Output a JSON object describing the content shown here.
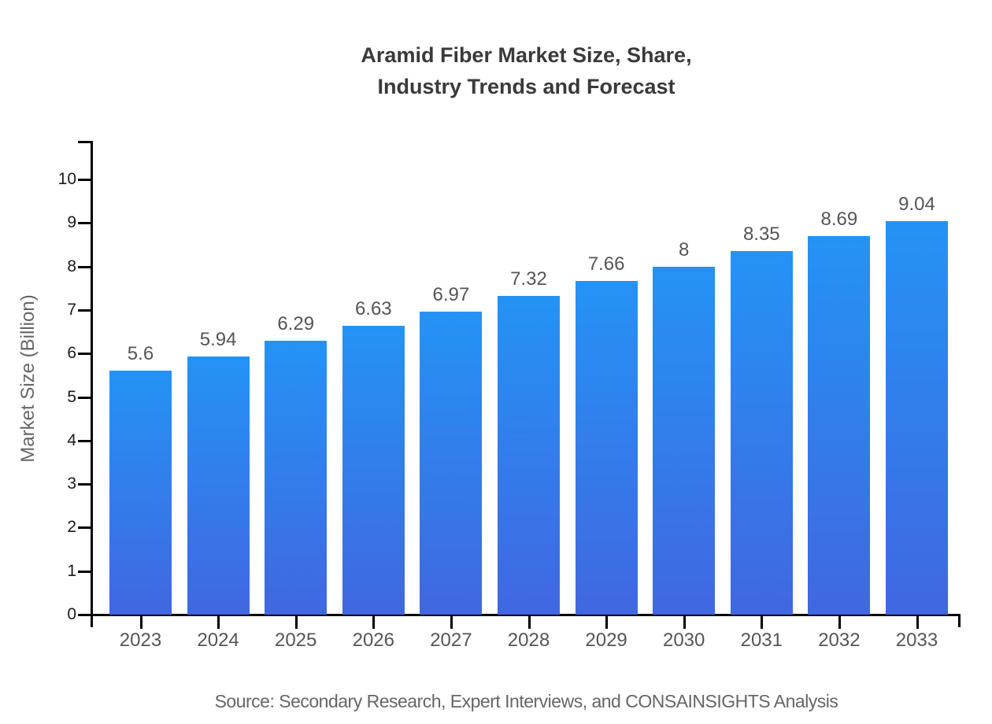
{
  "title": {
    "line1": "Aramid Fiber Market Size, Share,",
    "line2": "Industry Trends and Forecast"
  },
  "source": "Source: Secondary Research, Expert Interviews, and CONSAINSIGHTS Analysis",
  "chart_data": {
    "type": "bar",
    "title": "Aramid Fiber Market Size, Share, Industry Trends and Forecast",
    "categories": [
      "2023",
      "2024",
      "2025",
      "2026",
      "2027",
      "2028",
      "2029",
      "2030",
      "2031",
      "2032",
      "2033"
    ],
    "values": [
      5.6,
      5.94,
      6.29,
      6.63,
      6.97,
      7.32,
      7.66,
      8,
      8.35,
      8.69,
      9.04
    ],
    "xlabel": "",
    "ylabel": "Market Size (Billion)",
    "ylim": [
      0,
      10.9
    ],
    "yticks": [
      0,
      1,
      2,
      3,
      4,
      5,
      6,
      7,
      8,
      9,
      10
    ],
    "grid": false,
    "legend": null,
    "value_labels_shown": true,
    "bar_gradient": {
      "top": "#2493f5",
      "bottom": "#4167e0"
    },
    "axis_color": "#000000",
    "label_color": "#555555"
  }
}
